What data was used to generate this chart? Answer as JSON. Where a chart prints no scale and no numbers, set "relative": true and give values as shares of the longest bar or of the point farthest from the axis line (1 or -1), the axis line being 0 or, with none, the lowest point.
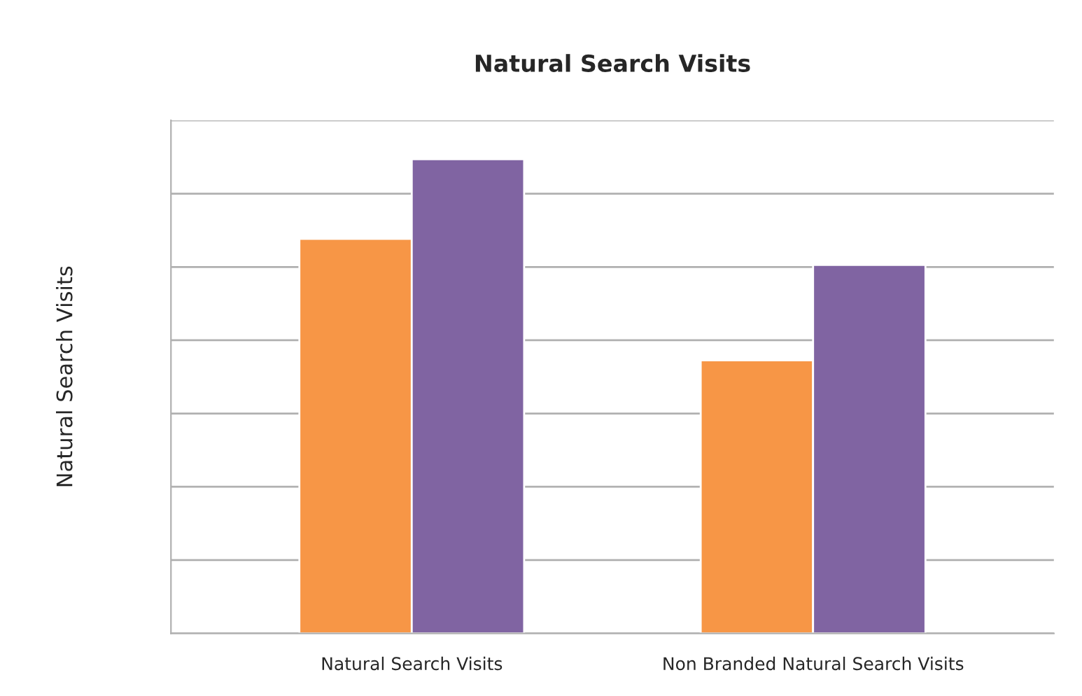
{
  "chart_data": {
    "type": "bar",
    "title": "Natural Search Visits",
    "ylabel": "Natural Search Visits",
    "categories": [
      "Natural Search Visits",
      "Non Branded Natural Search Visits"
    ],
    "series": [
      {
        "color": "#f79646",
        "values": [
          0.832,
          0.576
        ]
      },
      {
        "color": "#8064a2",
        "values": [
          1,
          0.777
        ]
      }
    ],
    "relative": true,
    "grid": "y",
    "legend": false
  }
}
